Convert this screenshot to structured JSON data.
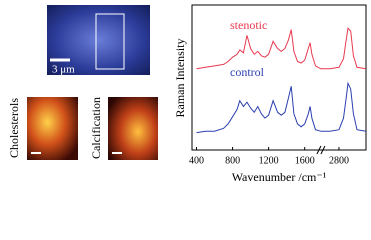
{
  "images": {
    "scale_label": "3 μm",
    "panel_labels": [
      "Cholesterols",
      "Calcification"
    ]
  },
  "chart_data": {
    "type": "line",
    "xlabel": "Wavenumber /cm⁻¹",
    "ylabel": "Raman Intensity",
    "x": [
      400,
      500,
      600,
      700,
      750,
      800,
      850,
      880,
      920,
      960,
      1000,
      1040,
      1080,
      1120,
      1160,
      1200,
      1250,
      1300,
      1340,
      1380,
      1420,
      1450,
      1480,
      1520,
      1560,
      1600,
      1640,
      1660,
      1680,
      1720,
      1780,
      2600,
      2700,
      2800,
      2850,
      2880,
      2900,
      2930,
      2960,
      3000,
      3100
    ],
    "series": [
      {
        "name": "stenotic",
        "color": "#e8384f",
        "values": [
          5.6,
          5.7,
          5.8,
          5.9,
          6.1,
          6.4,
          6.6,
          6.9,
          6.7,
          7.9,
          7.0,
          6.6,
          6.8,
          6.5,
          6.4,
          6.6,
          7.5,
          7.0,
          6.8,
          7.0,
          7.6,
          8.3,
          6.8,
          6.1,
          6.0,
          6.2,
          7.0,
          7.4,
          6.6,
          5.8,
          5.6,
          5.6,
          5.6,
          5.7,
          6.3,
          7.6,
          8.4,
          8.2,
          6.5,
          5.7,
          5.6
        ]
      },
      {
        "name": "control",
        "color": "#2b3fb0",
        "values": [
          1.2,
          1.3,
          1.3,
          1.5,
          1.8,
          2.3,
          2.8,
          3.4,
          3.0,
          3.3,
          2.9,
          2.6,
          3.0,
          2.5,
          2.2,
          2.4,
          3.4,
          2.6,
          2.4,
          2.6,
          3.6,
          4.4,
          2.5,
          1.8,
          1.6,
          1.8,
          2.5,
          3.0,
          2.2,
          1.4,
          1.3,
          1.3,
          1.3,
          1.4,
          2.2,
          3.6,
          4.6,
          4.2,
          2.5,
          1.4,
          1.3
        ]
      }
    ],
    "xlim": [
      350,
      3100
    ],
    "xbreak": [
      1780,
      2600
    ],
    "xticks": [
      400,
      800,
      1200,
      1600,
      2800
    ],
    "ylim": [
      0,
      10
    ]
  }
}
